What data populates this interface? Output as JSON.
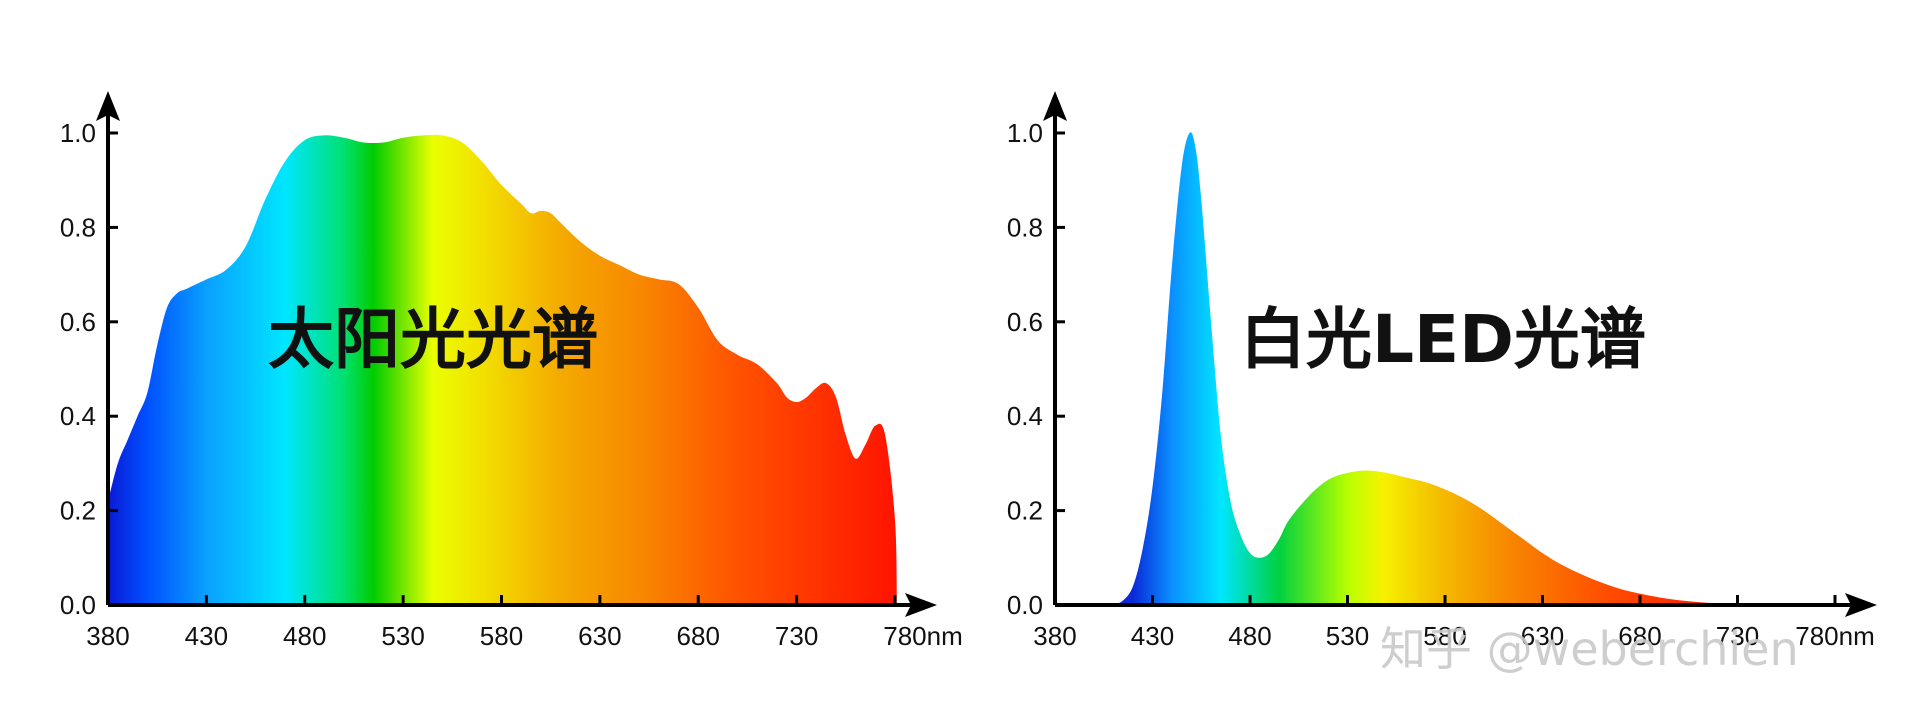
{
  "chart_data": [
    {
      "type": "area",
      "title": "太阳光光谱",
      "x_unit": "nm",
      "x_ticks": [
        "380",
        "430",
        "480",
        "530",
        "580",
        "630",
        "680",
        "730",
        "780"
      ],
      "y_ticks": [
        "0.0",
        "0.2",
        "0.4",
        "0.6",
        "0.8",
        "1.0"
      ],
      "xlim": [
        380,
        780
      ],
      "ylim": [
        0,
        1.0
      ],
      "grid": false,
      "x": [
        380,
        385,
        390,
        395,
        400,
        405,
        410,
        415,
        420,
        425,
        430,
        440,
        450,
        460,
        470,
        480,
        490,
        500,
        510,
        520,
        530,
        540,
        550,
        560,
        570,
        580,
        590,
        595,
        600,
        605,
        610,
        620,
        630,
        640,
        650,
        660,
        670,
        680,
        690,
        700,
        710,
        720,
        725,
        730,
        735,
        740,
        745,
        750,
        755,
        760,
        765,
        770,
        775,
        780,
        781
      ],
      "values": [
        0.22,
        0.3,
        0.35,
        0.4,
        0.45,
        0.55,
        0.63,
        0.66,
        0.67,
        0.68,
        0.69,
        0.71,
        0.76,
        0.86,
        0.94,
        0.985,
        0.995,
        0.99,
        0.98,
        0.98,
        0.99,
        0.995,
        0.995,
        0.98,
        0.94,
        0.89,
        0.85,
        0.83,
        0.835,
        0.83,
        0.81,
        0.77,
        0.74,
        0.72,
        0.7,
        0.69,
        0.68,
        0.63,
        0.56,
        0.53,
        0.51,
        0.47,
        0.44,
        0.43,
        0.44,
        0.46,
        0.47,
        0.44,
        0.36,
        0.31,
        0.34,
        0.38,
        0.36,
        0.18,
        0.0
      ],
      "colors": {
        "gradient": [
          [
            380,
            "#0a1ad6"
          ],
          [
            400,
            "#0050ff"
          ],
          [
            430,
            "#0aa0ff"
          ],
          [
            470,
            "#00e6ff"
          ],
          [
            500,
            "#00e070"
          ],
          [
            515,
            "#00cc00"
          ],
          [
            545,
            "#eaff00"
          ],
          [
            570,
            "#f2e000"
          ],
          [
            610,
            "#f4aa00"
          ],
          [
            650,
            "#f78800"
          ],
          [
            700,
            "#ff5200"
          ],
          [
            780,
            "#ff1400"
          ]
        ]
      }
    },
    {
      "type": "area",
      "title": "白光LED光谱",
      "x_unit": "nm",
      "x_ticks": [
        "380",
        "430",
        "480",
        "530",
        "580",
        "630",
        "680",
        "730",
        "780nm"
      ],
      "y_ticks": [
        "0.0",
        "0.2",
        "0.4",
        "0.6",
        "0.8",
        "1.0"
      ],
      "xlim": [
        380,
        780
      ],
      "ylim": [
        0,
        1.0
      ],
      "grid": false,
      "x": [
        410,
        415,
        420,
        425,
        430,
        435,
        440,
        445,
        449,
        452,
        455,
        460,
        465,
        470,
        475,
        480,
        485,
        490,
        495,
        500,
        510,
        520,
        530,
        540,
        550,
        560,
        570,
        580,
        590,
        600,
        610,
        620,
        630,
        640,
        650,
        660,
        670,
        680,
        690,
        700,
        710,
        720,
        730,
        740,
        750,
        760,
        770,
        780
      ],
      "values": [
        0.0,
        0.01,
        0.04,
        0.12,
        0.25,
        0.45,
        0.72,
        0.93,
        1.0,
        0.97,
        0.86,
        0.6,
        0.36,
        0.22,
        0.15,
        0.11,
        0.1,
        0.11,
        0.14,
        0.18,
        0.23,
        0.265,
        0.28,
        0.285,
        0.28,
        0.27,
        0.26,
        0.245,
        0.225,
        0.2,
        0.17,
        0.14,
        0.11,
        0.085,
        0.065,
        0.048,
        0.034,
        0.024,
        0.016,
        0.01,
        0.006,
        0.003,
        0.002,
        0.001,
        0.0,
        0.0,
        0.0,
        0.0
      ],
      "colors": {
        "gradient": [
          [
            380,
            "#0a1ad6"
          ],
          [
            420,
            "#0a2ad8"
          ],
          [
            440,
            "#0a90ff"
          ],
          [
            465,
            "#00e6ff"
          ],
          [
            495,
            "#00d040"
          ],
          [
            530,
            "#b8ff00"
          ],
          [
            548,
            "#f6f200"
          ],
          [
            575,
            "#f4c000"
          ],
          [
            610,
            "#f78a00"
          ],
          [
            660,
            "#ff5000"
          ],
          [
            720,
            "#ff1a00"
          ],
          [
            780,
            "#ff1400"
          ]
        ]
      }
    }
  ],
  "watermark": "知乎 @weberchien"
}
